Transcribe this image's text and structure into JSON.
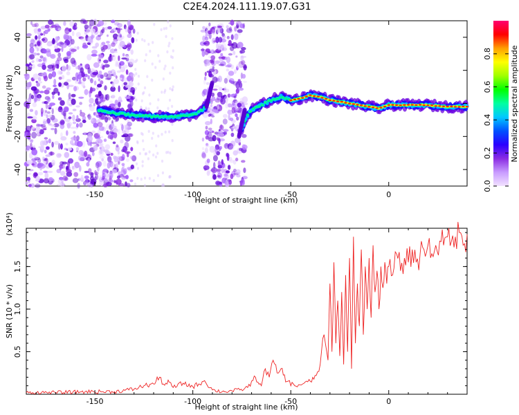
{
  "figure": {
    "title": "C2E4.2024.111.19.07.G31"
  },
  "chart_data": [
    {
      "type": "heatmap",
      "name": "spectrogram",
      "xlabel": "Height of straight line (km)",
      "ylabel": "Frequency (Hz)",
      "xlim": [
        -185,
        40
      ],
      "ylim": [
        -50,
        50
      ],
      "xticks": [
        -150,
        -100,
        -50,
        0
      ],
      "xtick_labels": [
        "-150",
        "-100",
        "-50",
        "0"
      ],
      "yticks": [
        -40,
        -20,
        0,
        20,
        40
      ],
      "ytick_labels": [
        "-40",
        "-20",
        "0",
        "20",
        "40"
      ],
      "colorbar": {
        "label": "Normalized spectral amplitude",
        "range": [
          0,
          1
        ],
        "ticks": [
          0.0,
          0.2,
          0.4,
          0.6,
          0.8
        ],
        "tick_labels": [
          "0.0",
          "0.2",
          "0.4",
          "0.6",
          "0.8"
        ],
        "stops": [
          "#f2e2ff",
          "#c89bff",
          "#8a2be2",
          "#2b00ff",
          "#0050ff",
          "#00c8ff",
          "#00ffa0",
          "#00ff00",
          "#a0ff00",
          "#ffff00",
          "#ffa000",
          "#ff0000",
          "#ff0070"
        ]
      },
      "ridge": {
        "x": [
          -148,
          -140,
          -130,
          -120,
          -110,
          -100,
          -95,
          -92,
          -90,
          -75,
          -72,
          -70,
          -65,
          -60,
          -55,
          -50,
          -45,
          -40,
          -35,
          -30,
          -25,
          -20,
          -15,
          -10,
          -5,
          0,
          10,
          20,
          30,
          40
        ],
        "y": [
          -4,
          -6,
          -7,
          -8,
          -8,
          -7,
          -4,
          0,
          6,
          -15,
          -7,
          -4,
          -1,
          2,
          4,
          2,
          3,
          5,
          4,
          2,
          1,
          0,
          -1,
          -2,
          -3,
          -1,
          -1,
          -1,
          -2,
          -2
        ]
      },
      "noise_regions": [
        [
          -185,
          -130
        ],
        [
          -95,
          -73
        ]
      ],
      "gap_region": [
        -92,
        -72
      ]
    },
    {
      "type": "line",
      "name": "snr",
      "xlabel": "Height of straight line (km)",
      "ylabel": "SNR (10 * v/v)",
      "scale_label": "(x10⁴)",
      "xlim": [
        -185,
        40
      ],
      "ylim": [
        0,
        1.95
      ],
      "xticks": [
        -150,
        -100,
        -50,
        0
      ],
      "xtick_labels": [
        "-150",
        "-100",
        "-50",
        "0"
      ],
      "yticks": [
        0.5,
        1.0,
        1.5
      ],
      "ytick_labels": [
        "0.5",
        "1.0",
        "1.5"
      ],
      "color": "#ee2222",
      "series": [
        {
          "x": [
            -185,
            -170,
            -155,
            -140,
            -130,
            -125,
            -120,
            -117,
            -115,
            -112,
            -110,
            -105,
            -100,
            -97,
            -94,
            -90,
            -85,
            -80,
            -76,
            -72,
            -68,
            -65,
            -63,
            -61,
            -59,
            -57,
            -55,
            -52,
            -48,
            -44,
            -40,
            -37,
            -35,
            -33,
            -31,
            -30,
            -29,
            -28,
            -27,
            -26,
            -25,
            -24,
            -23,
            -22,
            -21,
            -20,
            -19,
            -18,
            -17,
            -16,
            -15,
            -14,
            -13,
            -12,
            -11,
            -10,
            -9,
            -8,
            -7,
            -6,
            -5,
            -4,
            -3,
            -2,
            -1,
            0,
            2,
            4,
            6,
            8,
            10,
            12,
            14,
            16,
            18,
            20,
            22,
            24,
            26,
            28,
            30,
            32,
            34,
            36,
            38,
            40
          ],
          "y": [
            0.02,
            0.02,
            0.03,
            0.03,
            0.06,
            0.1,
            0.12,
            0.2,
            0.12,
            0.14,
            0.08,
            0.13,
            0.09,
            0.12,
            0.16,
            0.05,
            0.03,
            0.04,
            0.05,
            0.08,
            0.2,
            0.1,
            0.3,
            0.2,
            0.4,
            0.25,
            0.3,
            0.15,
            0.1,
            0.12,
            0.15,
            0.22,
            0.35,
            0.7,
            0.4,
            1.3,
            0.5,
            1.55,
            0.6,
            1.1,
            0.45,
            1.2,
            0.35,
            1.4,
            0.5,
            1.6,
            0.3,
            1.85,
            0.6,
            1.3,
            0.8,
            1.7,
            0.7,
            1.5,
            1.0,
            1.6,
            0.9,
            1.75,
            1.2,
            1.45,
            1.0,
            1.5,
            1.25,
            1.55,
            1.3,
            1.5,
            1.4,
            1.65,
            1.45,
            1.6,
            1.55,
            1.7,
            1.55,
            1.65,
            1.7,
            1.75,
            1.65,
            1.75,
            1.8,
            1.75,
            1.85,
            1.8,
            1.85,
            1.9,
            1.75,
            1.88
          ]
        }
      ]
    }
  ]
}
